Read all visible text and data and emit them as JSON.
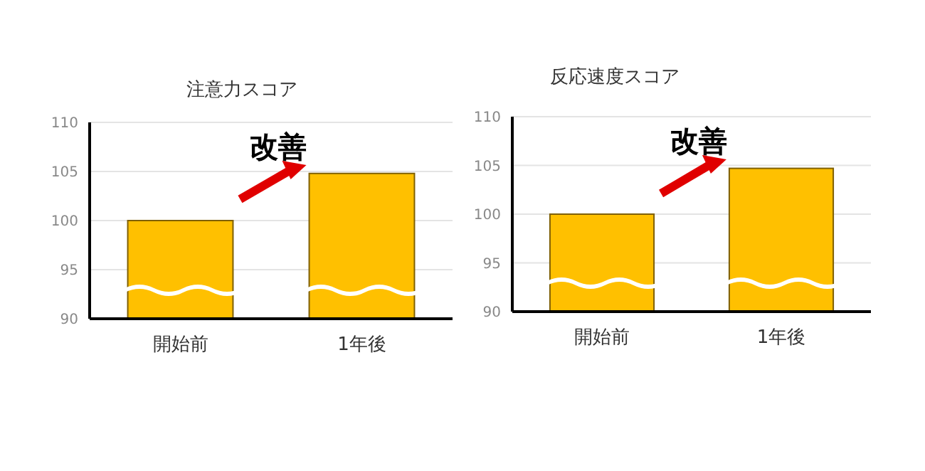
{
  "chart_data": [
    {
      "type": "bar",
      "title": "注意力スコア",
      "categories": [
        "開始前",
        "1年後"
      ],
      "values": [
        100,
        104.8
      ],
      "color": "#ffc000",
      "ylim": [
        90,
        110
      ],
      "yticks": [
        90,
        95,
        100,
        105,
        110
      ],
      "grid": "y",
      "annotations": [
        "改善"
      ]
    },
    {
      "type": "bar",
      "title": "反応速度スコア",
      "categories": [
        "開始前",
        "1年後"
      ],
      "values": [
        100,
        104.7
      ],
      "color": "#ffc000",
      "ylim": [
        90,
        110
      ],
      "yticks": [
        90,
        95,
        100,
        105,
        110
      ],
      "grid": "y",
      "annotations": [
        "改善"
      ]
    }
  ]
}
